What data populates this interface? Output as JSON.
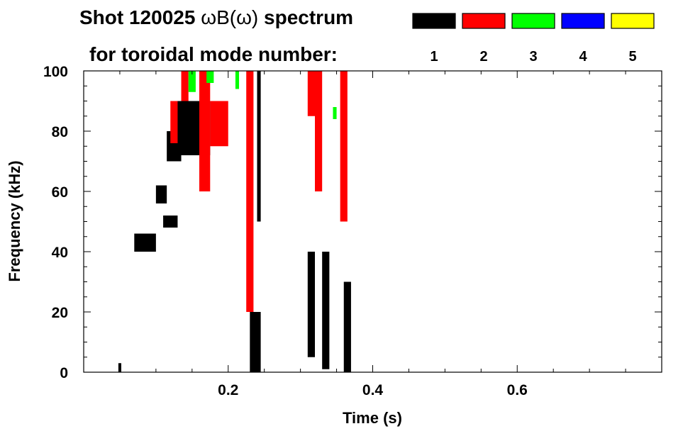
{
  "chart_data": {
    "type": "heatmap",
    "title_line1_prefix": "Shot 120025 ",
    "title_line1_formula": "ωB(ω)",
    "title_line1_suffix": " spectrum",
    "title_line2": "for toroidal mode number:",
    "xlabel": "Time (s)",
    "ylabel": "Frequency (kHz)",
    "xlim": [
      0.0,
      0.8
    ],
    "ylim": [
      0,
      100
    ],
    "x_ticks": [
      0.2,
      0.4,
      0.6
    ],
    "y_ticks": [
      0,
      20,
      40,
      60,
      80,
      100
    ],
    "grid": false,
    "legend_position": "top-right",
    "legend": [
      {
        "mode": "1",
        "color": "#000000"
      },
      {
        "mode": "2",
        "color": "#ff0000"
      },
      {
        "mode": "3",
        "color": "#00ff00"
      },
      {
        "mode": "4",
        "color": "#0000ff"
      },
      {
        "mode": "5",
        "color": "#ffff00"
      }
    ],
    "series": [
      {
        "mode": "1",
        "color": "#000000",
        "regions": [
          {
            "t": [
              0.125,
              0.175
            ],
            "f": [
              72,
              90
            ]
          },
          {
            "t": [
              0.115,
              0.135
            ],
            "f": [
              70,
              80
            ]
          },
          {
            "t": [
              0.11,
              0.13
            ],
            "f": [
              48,
              52
            ]
          },
          {
            "t": [
              0.07,
              0.1
            ],
            "f": [
              40,
              46
            ]
          },
          {
            "t": [
              0.1,
              0.115
            ],
            "f": [
              56,
              62
            ]
          },
          {
            "t": [
              0.23,
              0.245
            ],
            "f": [
              0,
              20
            ]
          },
          {
            "t": [
              0.24,
              0.245
            ],
            "f": [
              50,
              100
            ]
          },
          {
            "t": [
              0.31,
              0.32
            ],
            "f": [
              5,
              40
            ]
          },
          {
            "t": [
              0.33,
              0.34
            ],
            "f": [
              1,
              40
            ]
          },
          {
            "t": [
              0.36,
              0.37
            ],
            "f": [
              0,
              30
            ]
          },
          {
            "t": [
              0.048,
              0.052
            ],
            "f": [
              0,
              3
            ]
          }
        ]
      },
      {
        "mode": "2",
        "color": "#ff0000",
        "regions": [
          {
            "t": [
              0.12,
              0.13
            ],
            "f": [
              76,
              90
            ]
          },
          {
            "t": [
              0.135,
              0.145
            ],
            "f": [
              90,
              100
            ]
          },
          {
            "t": [
              0.16,
              0.175
            ],
            "f": [
              60,
              100
            ]
          },
          {
            "t": [
              0.175,
              0.2
            ],
            "f": [
              75,
              90
            ]
          },
          {
            "t": [
              0.225,
              0.235
            ],
            "f": [
              20,
              100
            ]
          },
          {
            "t": [
              0.31,
              0.32
            ],
            "f": [
              85,
              100
            ]
          },
          {
            "t": [
              0.32,
              0.33
            ],
            "f": [
              60,
              100
            ]
          },
          {
            "t": [
              0.355,
              0.365
            ],
            "f": [
              50,
              100
            ]
          }
        ]
      },
      {
        "mode": "3",
        "color": "#00ff00",
        "regions": [
          {
            "t": [
              0.145,
              0.155
            ],
            "f": [
              93,
              100
            ]
          },
          {
            "t": [
              0.17,
              0.18
            ],
            "f": [
              96,
              100
            ]
          },
          {
            "t": [
              0.21,
              0.215
            ],
            "f": [
              94,
              100
            ]
          },
          {
            "t": [
              0.345,
              0.35
            ],
            "f": [
              84,
              88
            ]
          }
        ]
      },
      {
        "mode": "4",
        "color": "#0000ff",
        "regions": []
      },
      {
        "mode": "5",
        "color": "#ffff00",
        "regions": []
      }
    ]
  }
}
